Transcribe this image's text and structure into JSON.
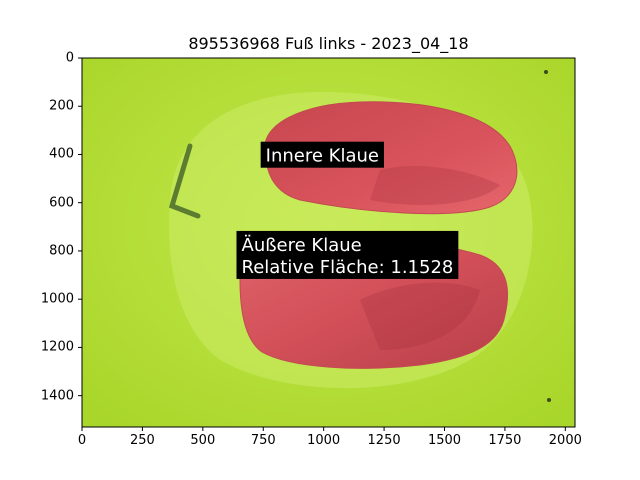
{
  "chart_data": {
    "type": "image",
    "title": "895536968 Fuß links - 2023_04_18",
    "xlim": [
      0,
      2040
    ],
    "ylim": [
      1530,
      0
    ],
    "x_ticks": [
      "0",
      "250",
      "500",
      "750",
      "1000",
      "1250",
      "1500",
      "1750",
      "2000"
    ],
    "y_ticks": [
      "0",
      "200",
      "400",
      "600",
      "800",
      "1000",
      "1200",
      "1400"
    ],
    "annotations": [
      {
        "lines": [
          "Innere Klaue"
        ],
        "x": 760,
        "y": 430
      },
      {
        "lines": [
          "Äußere Klaue",
          "Relative Fläche: 1.1528"
        ],
        "x": 660,
        "y": 800
      }
    ],
    "colors": {
      "background": "#b6e03a",
      "claw": "#d9505a",
      "claw_dark": "#b23a46",
      "label_bg": "#000000",
      "label_text": "#ffffff"
    }
  }
}
